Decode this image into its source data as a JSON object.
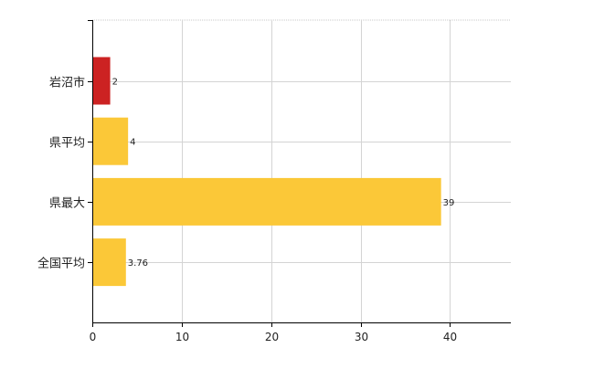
{
  "chart_data": {
    "type": "bar",
    "orientation": "horizontal",
    "categories": [
      "岩沼市",
      "県平均",
      "県最大",
      "全国平均"
    ],
    "values": [
      2,
      4,
      39,
      3.76
    ],
    "data_labels": [
      "2",
      "4",
      "39",
      "3.76"
    ],
    "x_ticks": [
      0,
      10,
      20,
      30,
      40
    ],
    "xlim": [
      0,
      46.8
    ],
    "grid": true,
    "bar_colors": [
      "#cc2222",
      "#fbc838",
      "#fbc838",
      "#fbc838"
    ],
    "title": "",
    "xlabel": "",
    "ylabel": ""
  }
}
